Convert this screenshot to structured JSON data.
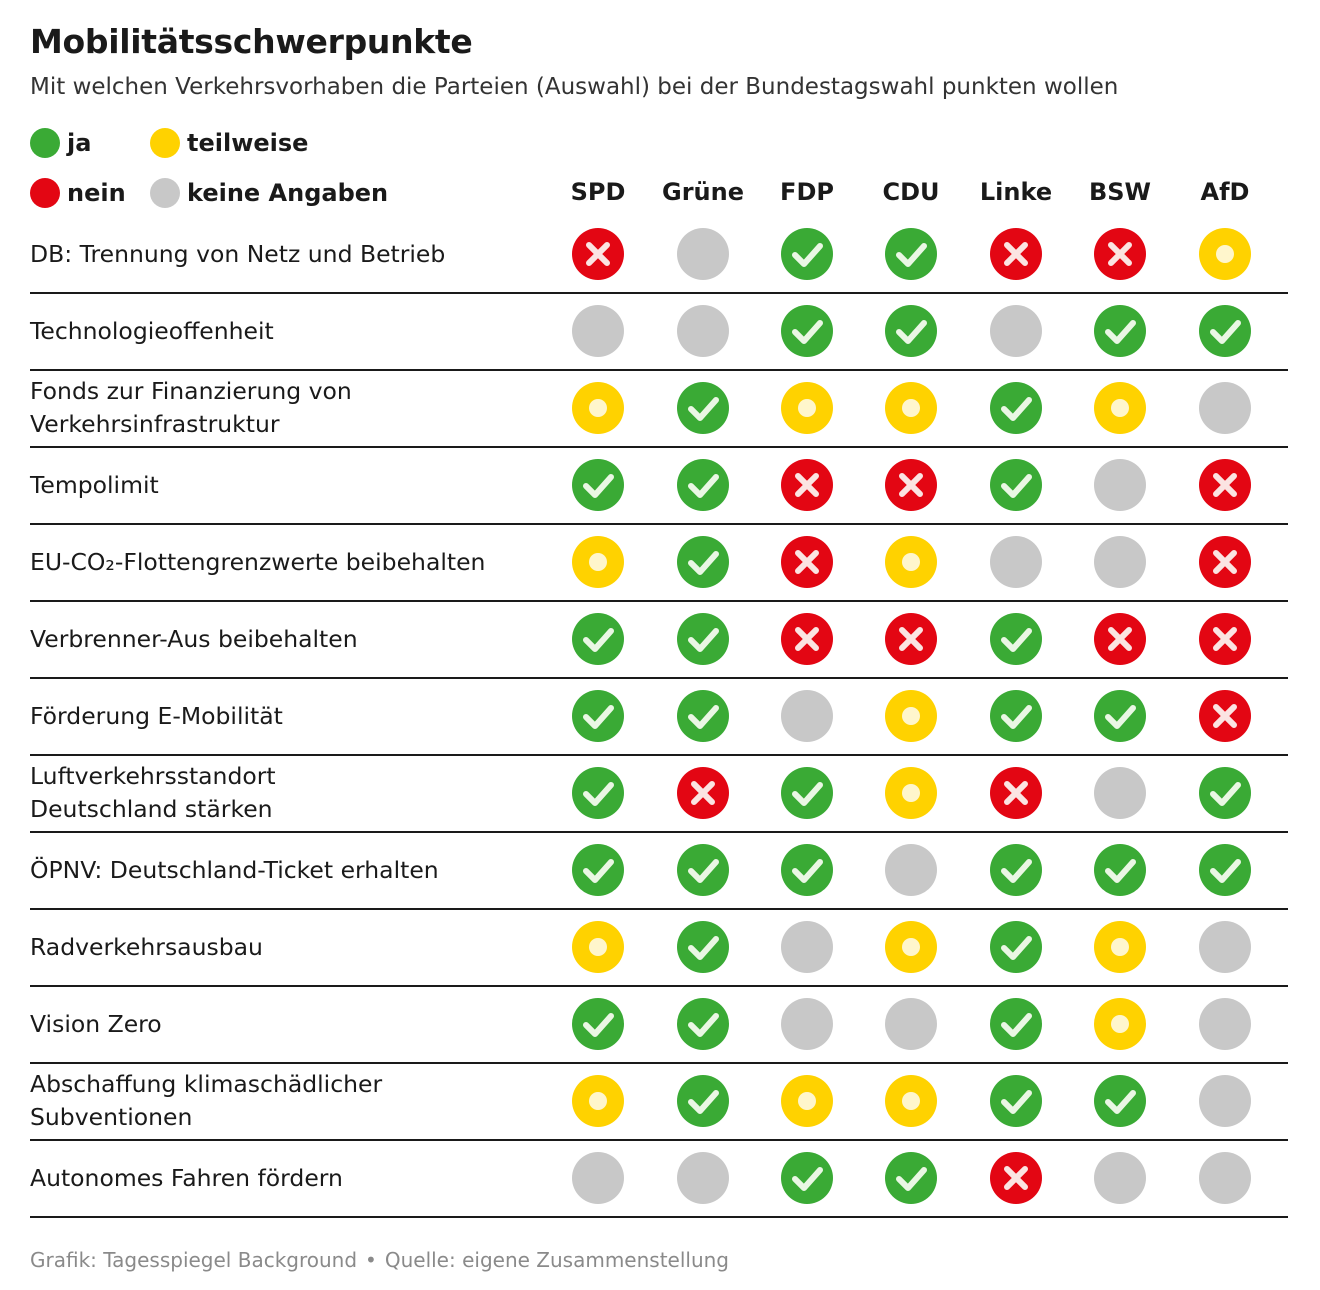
{
  "title": "Mobilitätsschwerpunkte",
  "subtitle": "Mit welchen Verkehrsvorhaben die Parteien (Auswahl) bei der Bundestagswahl punkten wollen",
  "colors": {
    "ja": "#3aaa35",
    "teilweise": "#ffd200",
    "nein": "#e30613",
    "keine": "#c8c8c8"
  },
  "legend": {
    "ja": "ja",
    "teilweise": "teilweise",
    "nein": "nein",
    "keine": "keine Angaben"
  },
  "chart_data": {
    "type": "table",
    "columns": [
      "SPD",
      "Grüne",
      "FDP",
      "CDU",
      "Linke",
      "BSW",
      "AfD"
    ],
    "rows": [
      {
        "label": "DB: Trennung von Netz und Betrieb",
        "values": [
          "nein",
          "keine",
          "ja",
          "ja",
          "nein",
          "nein",
          "teilweise"
        ]
      },
      {
        "label": "Technologieoffenheit",
        "values": [
          "keine",
          "keine",
          "ja",
          "ja",
          "keine",
          "ja",
          "ja"
        ]
      },
      {
        "label": "Fonds zur Finanzierung von\nVerkehrsinfrastruktur",
        "values": [
          "teilweise",
          "ja",
          "teilweise",
          "teilweise",
          "ja",
          "teilweise",
          "keine"
        ]
      },
      {
        "label": "Tempolimit",
        "values": [
          "ja",
          "ja",
          "nein",
          "nein",
          "ja",
          "keine",
          "nein"
        ]
      },
      {
        "label": "EU-CO₂-Flottengrenzwerte beibehalten",
        "values": [
          "teilweise",
          "ja",
          "nein",
          "teilweise",
          "keine",
          "keine",
          "nein"
        ]
      },
      {
        "label": "Verbrenner-Aus beibehalten",
        "values": [
          "ja",
          "ja",
          "nein",
          "nein",
          "ja",
          "nein",
          "nein"
        ]
      },
      {
        "label": "Förderung E-Mobilität",
        "values": [
          "ja",
          "ja",
          "keine",
          "teilweise",
          "ja",
          "ja",
          "nein"
        ]
      },
      {
        "label": "Luftverkehrsstandort\nDeutschland stärken",
        "values": [
          "ja",
          "nein",
          "ja",
          "teilweise",
          "nein",
          "keine",
          "ja"
        ]
      },
      {
        "label": "ÖPNV: Deutschland-Ticket erhalten",
        "values": [
          "ja",
          "ja",
          "ja",
          "keine",
          "ja",
          "ja",
          "ja"
        ]
      },
      {
        "label": "Radverkehrsausbau",
        "values": [
          "teilweise",
          "ja",
          "keine",
          "teilweise",
          "ja",
          "teilweise",
          "keine"
        ]
      },
      {
        "label": "Vision Zero",
        "values": [
          "ja",
          "ja",
          "keine",
          "keine",
          "ja",
          "teilweise",
          "keine"
        ]
      },
      {
        "label": "Abschaffung klimaschädlicher\nSubventionen",
        "values": [
          "teilweise",
          "ja",
          "teilweise",
          "teilweise",
          "ja",
          "ja",
          "keine"
        ]
      },
      {
        "label": "Autonomes Fahren fördern",
        "values": [
          "keine",
          "keine",
          "ja",
          "ja",
          "nein",
          "keine",
          "keine"
        ]
      }
    ]
  },
  "footer": {
    "credit": "Grafik: Tagesspiegel Background",
    "bullet": "•",
    "source": "Quelle: eigene Zusammenstellung"
  }
}
